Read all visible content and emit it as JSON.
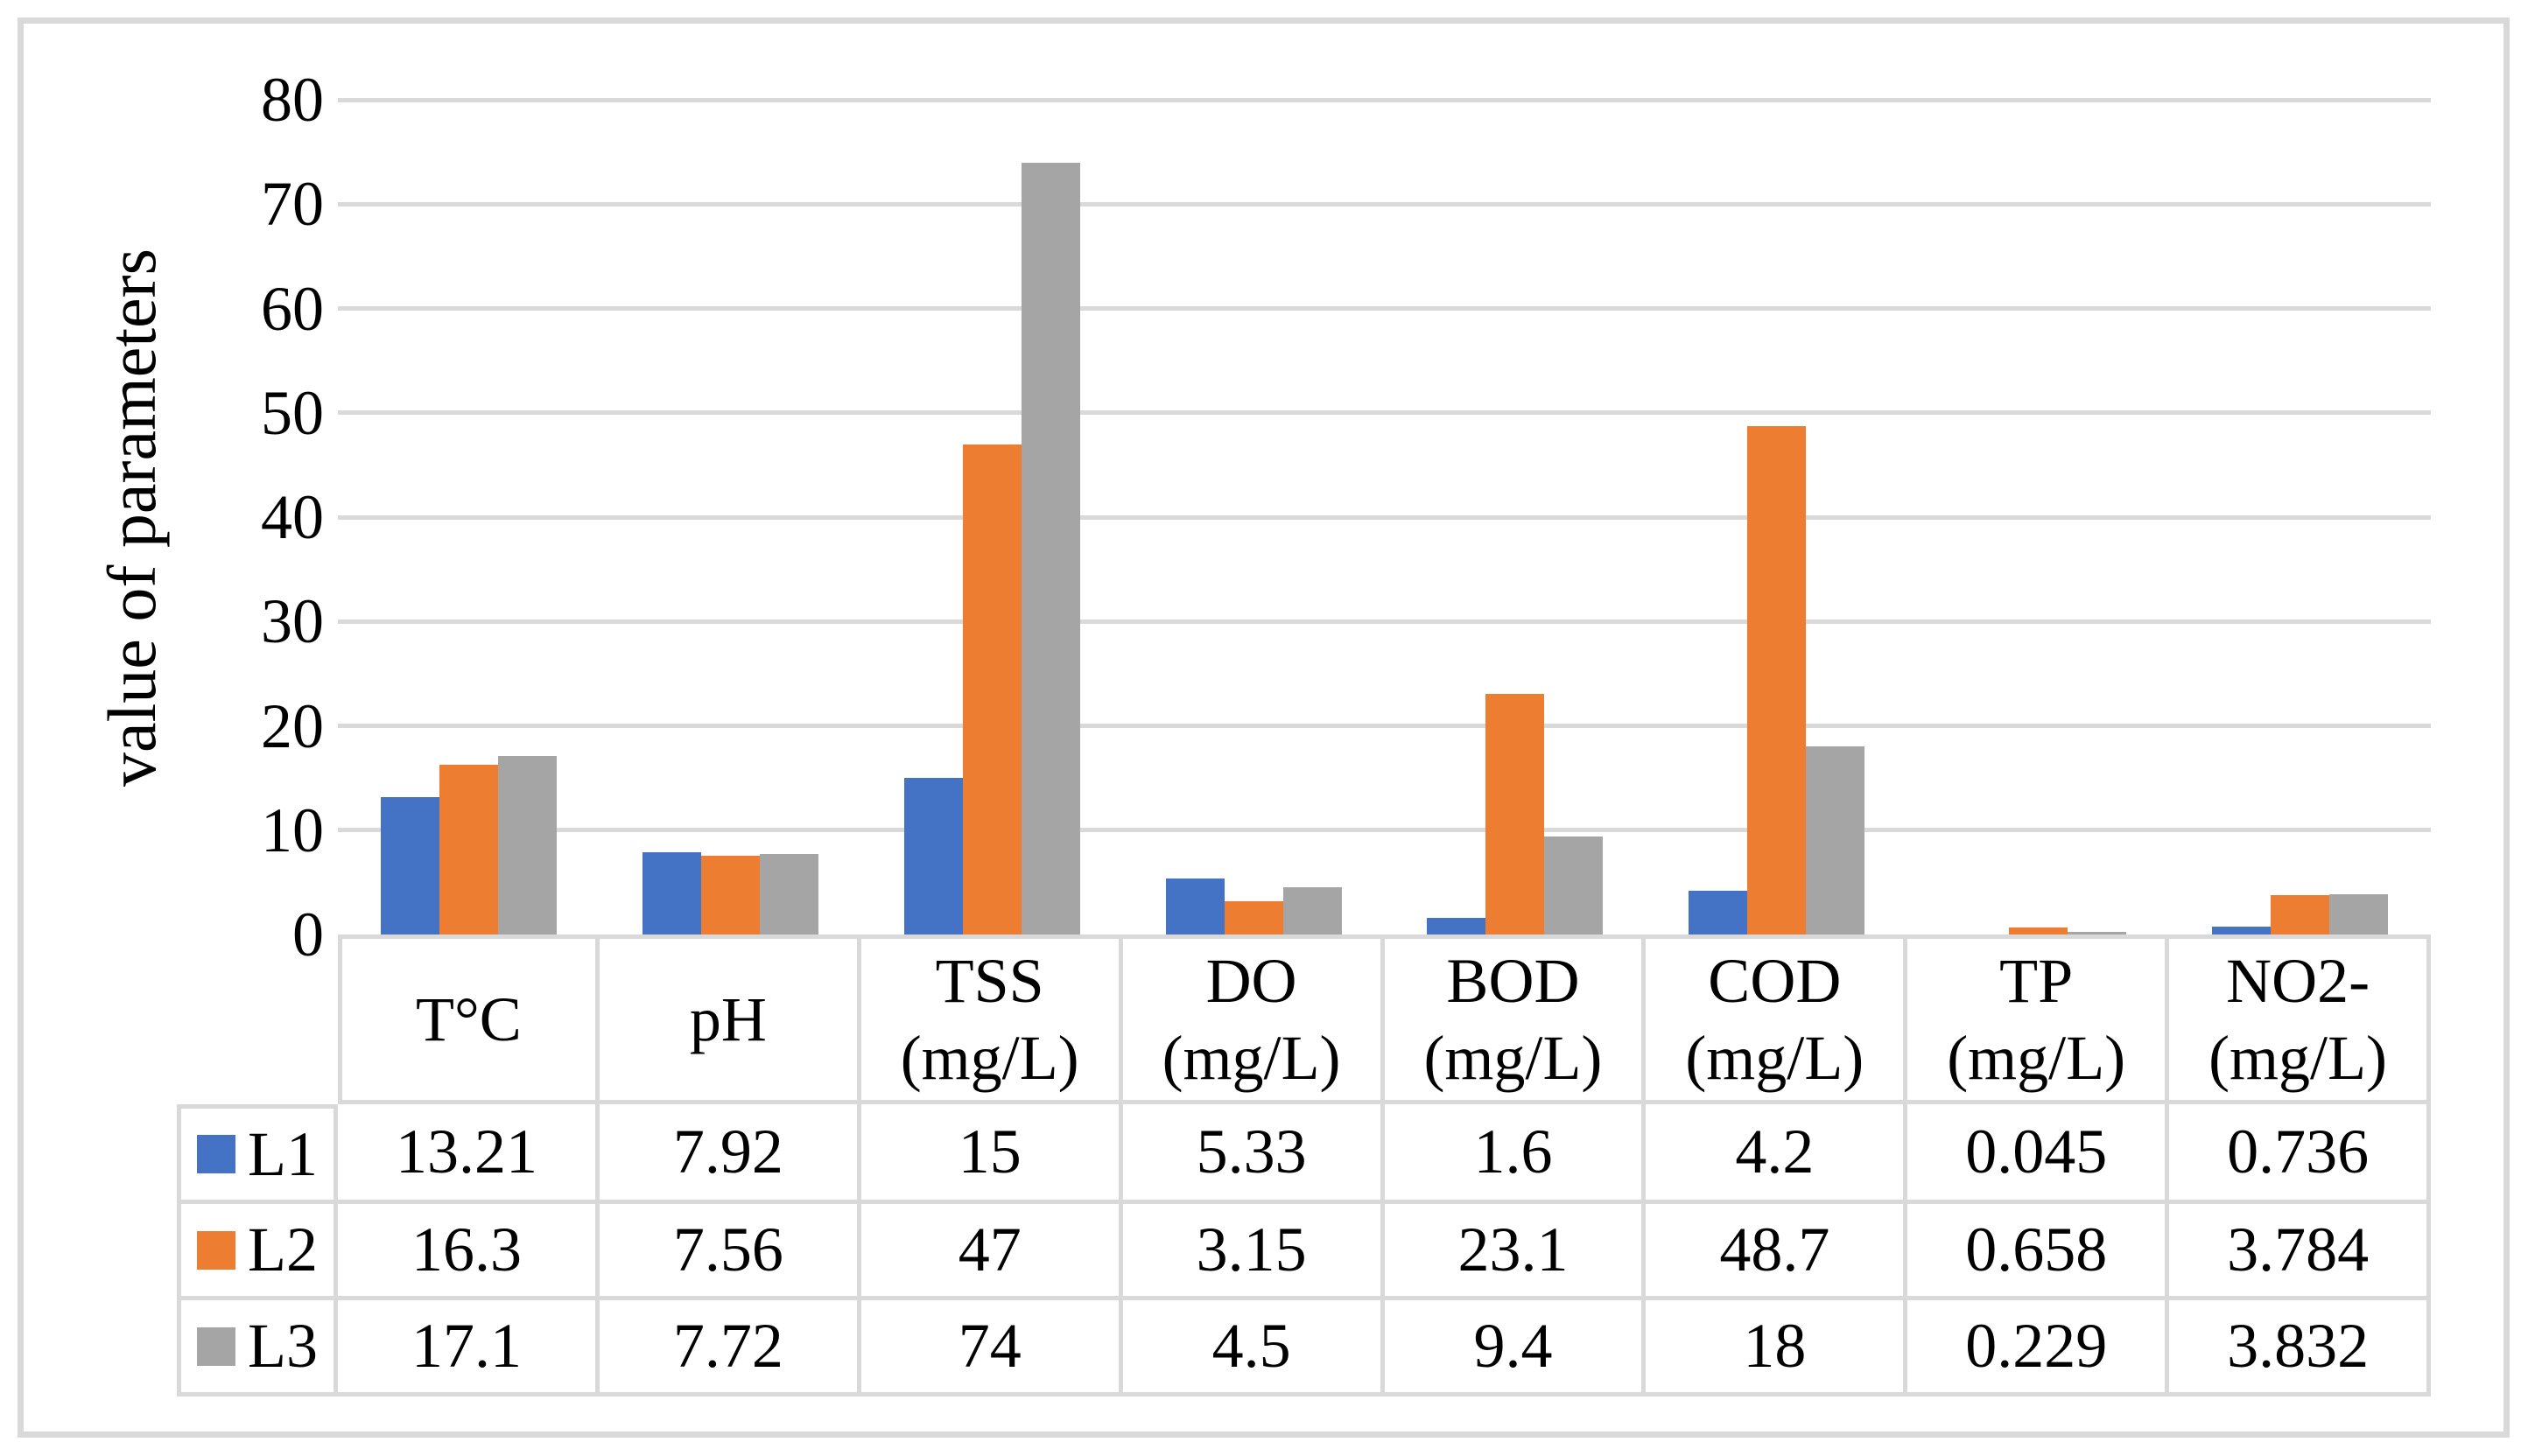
{
  "chart_data": {
    "type": "bar",
    "title": "",
    "ylabel": "value of parameters",
    "xlabel": "",
    "ylim": [
      0,
      80
    ],
    "y_ticks": [
      0,
      10,
      20,
      30,
      40,
      50,
      60,
      70,
      80
    ],
    "grid": true,
    "legend_position": "data-table-left-column",
    "categories": [
      [
        "T°C"
      ],
      [
        "pH"
      ],
      [
        "TSS",
        "(mg/L)"
      ],
      [
        "DO",
        "(mg/L)"
      ],
      [
        "BOD",
        "(mg/L)"
      ],
      [
        "COD",
        "(mg/L)"
      ],
      [
        "TP",
        "(mg/L)"
      ],
      [
        "NO2-",
        "(mg/L)"
      ]
    ],
    "series": [
      {
        "name": "L1",
        "color": "#4472C4",
        "values": [
          13.21,
          7.92,
          15,
          5.33,
          1.6,
          4.2,
          0.045,
          0.736
        ]
      },
      {
        "name": "L2",
        "color": "#ED7D31",
        "values": [
          16.3,
          7.56,
          47,
          3.15,
          23.1,
          48.7,
          0.658,
          3.784
        ]
      },
      {
        "name": "L3",
        "color": "#A5A5A5",
        "values": [
          17.1,
          7.72,
          74,
          4.5,
          9.4,
          18,
          0.229,
          3.832
        ]
      }
    ]
  },
  "colors": {
    "frame": "#d9d9d9",
    "gridline": "#d9d9d9",
    "table_border": "#d9d9d9",
    "text": "#000000",
    "background": "#ffffff"
  }
}
